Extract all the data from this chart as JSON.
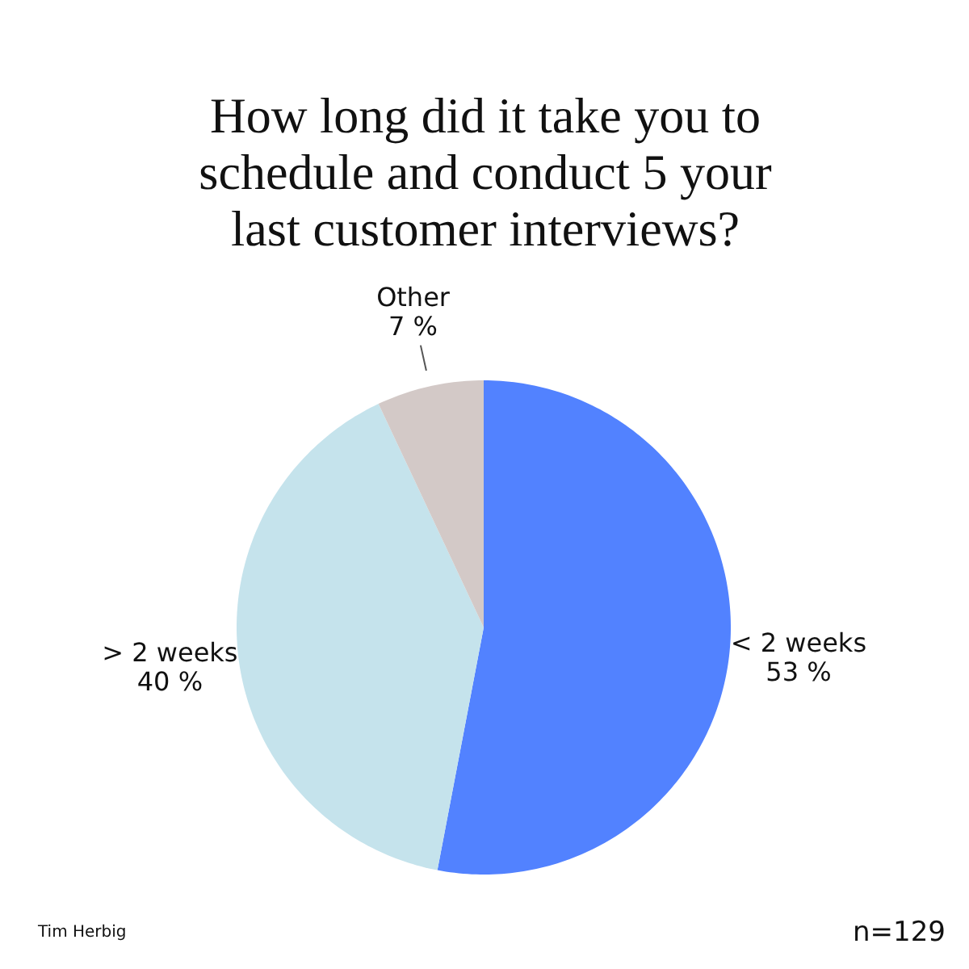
{
  "chart_data": {
    "type": "pie",
    "title": "How long did it take you to schedule and conduct 5 your last customer interviews?",
    "categories": [
      "< 2 weeks",
      "> 2 weeks",
      "Other"
    ],
    "values": [
      53,
      40,
      7
    ],
    "colors": [
      "#5282ff",
      "#c5e3ec",
      "#d3c9c7"
    ],
    "value_labels": [
      "53 %",
      "40 %",
      "7 %"
    ],
    "annotations": [
      "Tim Herbig",
      "n=129"
    ]
  }
}
